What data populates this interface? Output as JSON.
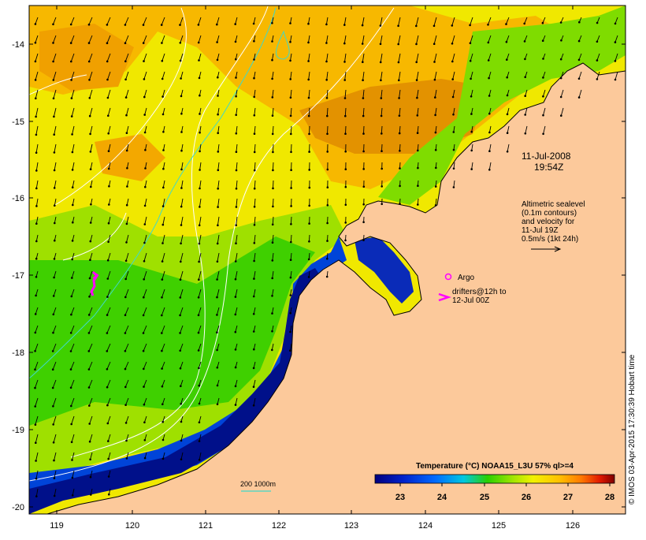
{
  "map": {
    "datetime_line1": "11-Jul-2008",
    "datetime_line2": "19:54Z",
    "altimetry_lines": [
      "Altimetric sealevel",
      "(0.1m contours)",
      "and velocity for",
      "11-Jul 19Z",
      "0.5m/s (1kt 24h)"
    ],
    "argo_label": "Argo",
    "drifters_lines": [
      "drifters@12h to",
      "12-Jul 00Z"
    ],
    "depth_label": "200  1000m",
    "colorbar_title": "Temperature (°C) NOAA15_L3U 57% ql>=4",
    "colorbar_ticks": [
      "23",
      "24",
      "25",
      "26",
      "27",
      "28"
    ],
    "credit": "© IMOS 03-Apr-2015 17:30:39 Hobart time",
    "x_ticks": [
      "119",
      "120",
      "121",
      "122",
      "123",
      "124",
      "125",
      "126"
    ],
    "y_ticks": [
      "-14",
      "-15",
      "-16",
      "-17",
      "-18",
      "-19",
      "-20"
    ],
    "colors": {
      "land": "#fcc99b",
      "temp_23": "#00007f",
      "temp_24": "#006aff",
      "temp_25": "#2ad000",
      "temp_26": "#d6f000",
      "temp_27": "#ff9400",
      "temp_28": "#7f0000",
      "contour": "#ffffff",
      "isobath_200": "#40d8c8",
      "drifter": "#ff00ff"
    }
  }
}
